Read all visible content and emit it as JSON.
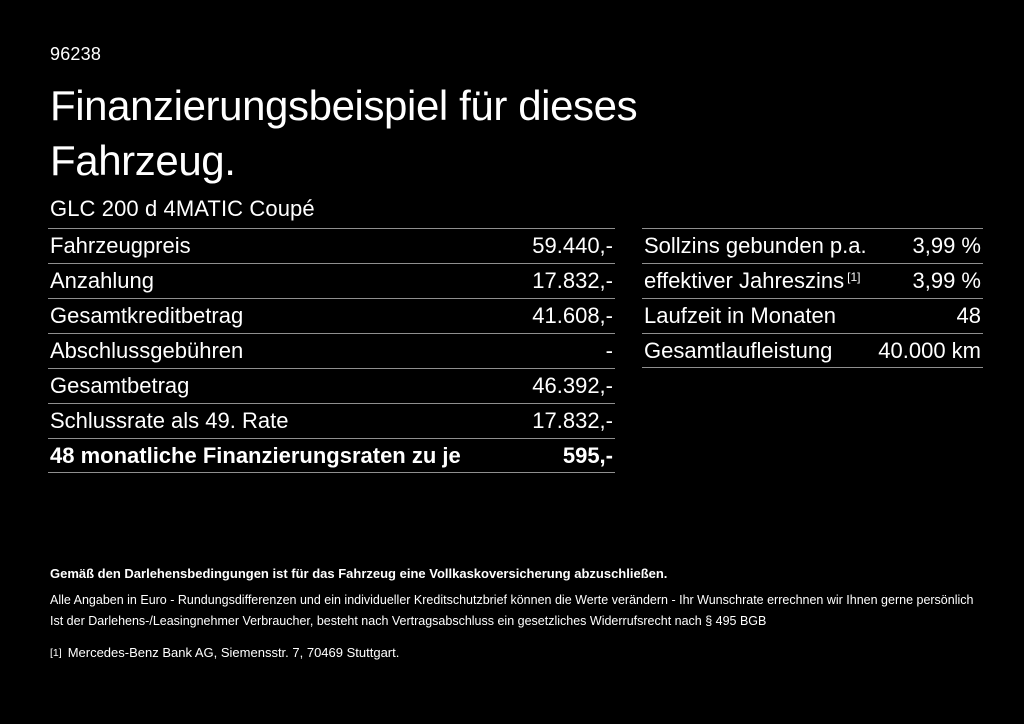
{
  "page": {
    "id_number": "96238",
    "title": "Finanzierungsbeispiel für dieses Fahrzeug.",
    "vehicle_name": "GLC 200 d 4MATIC Coupé"
  },
  "financing_table": {
    "rows": [
      {
        "label": "Fahrzeugpreis",
        "value": "59.440,-",
        "bold": false
      },
      {
        "label": "Anzahlung",
        "value": "17.832,-",
        "bold": false
      },
      {
        "label": "Gesamtkreditbetrag",
        "value": "41.608,-",
        "bold": false
      },
      {
        "label": "Abschlussgebühren",
        "value": "-",
        "bold": false
      },
      {
        "label": "Gesamtbetrag",
        "value": "46.392,-",
        "bold": false
      },
      {
        "label": "Schlussrate als 49. Rate",
        "value": "17.832,-",
        "bold": false
      },
      {
        "label": "48 monatliche Finanzierungsraten zu je",
        "value": "595,-",
        "bold": true
      }
    ]
  },
  "conditions_table": {
    "rows": [
      {
        "label": "Sollzins gebunden p.a.",
        "value": "3,99 %"
      },
      {
        "label": "effektiver Jahreszins",
        "superscript": "[1]",
        "value": "3,99 %"
      },
      {
        "label": "Laufzeit in Monaten",
        "value": "48"
      },
      {
        "label": "Gesamtlaufleistung",
        "value": "40.000 km"
      }
    ]
  },
  "footer": {
    "insurance_note": "Gemäß den Darlehensbedingungen ist für das Fahrzeug eine Vollkaskoversicherung abzuschließen.",
    "disclaimer_line1": "Alle Angaben in Euro - Rundungsdifferenzen und ein individueller Kreditschutzbrief können die Werte verändern - Ihr Wunschrate errechnen wir Ihnen gerne persönlich",
    "disclaimer_line2": "Ist der Darlehens-/Leasingnehmer Verbraucher, besteht nach Vertragsabschluss ein gesetzliches Widerrufsrecht nach § 495 BGB",
    "footnote_marker": "[1]",
    "footnote_text": "Mercedes-Benz Bank AG, Siemensstr. 7, 70469 Stuttgart."
  },
  "colors": {
    "background": "#000000",
    "text": "#ffffff",
    "separator": "#8f8f8f"
  }
}
